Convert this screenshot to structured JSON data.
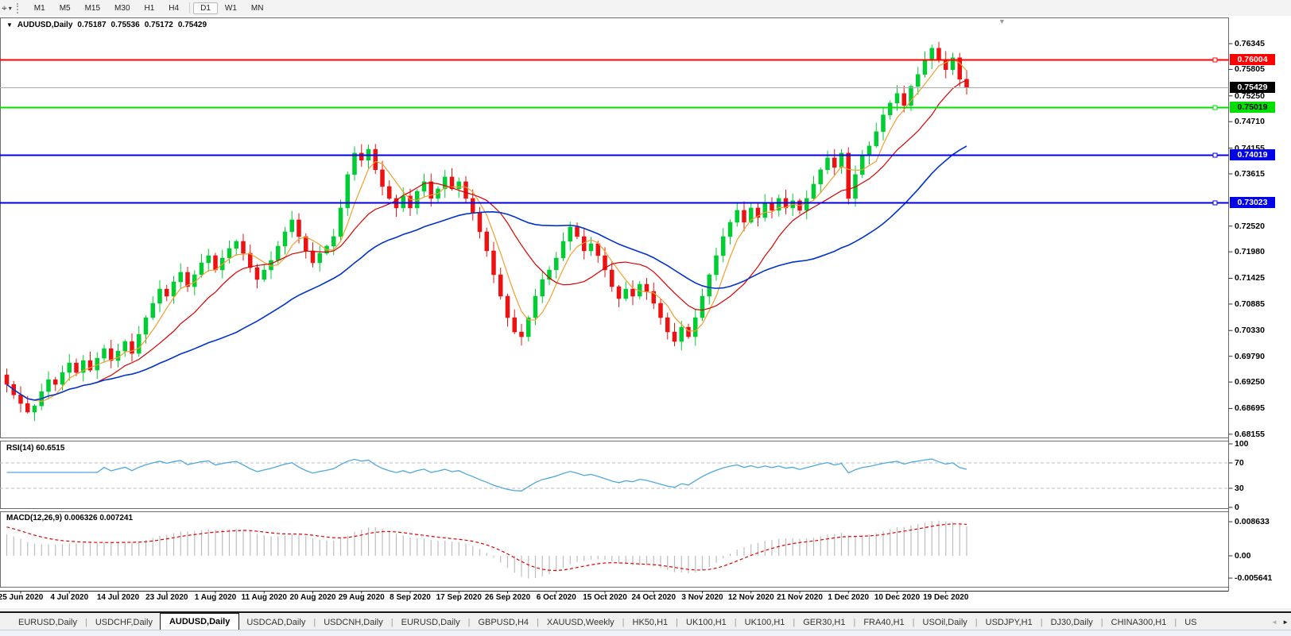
{
  "toolbar": {
    "tools_icon": "chart-cursor",
    "dropdown_icon": "caret-down",
    "timeframes": [
      "M1",
      "M5",
      "M15",
      "M30",
      "H1",
      "H4",
      "D1",
      "W1",
      "MN"
    ],
    "active_timeframe": "D1"
  },
  "chart_header": {
    "dropdown_icon": "triangle-down",
    "symbol": "AUDUSD,Daily",
    "open": "0.75187",
    "high": "0.75536",
    "low": "0.75172",
    "close": "0.75429"
  },
  "price_axis": {
    "ticks": [
      "0.76345",
      "0.75805",
      "0.75250",
      "0.74710",
      "0.74155",
      "0.73615",
      "0.72520",
      "0.71980",
      "0.71425",
      "0.70885",
      "0.70330",
      "0.69790",
      "0.69250",
      "0.68695",
      "0.68155"
    ],
    "badges": [
      {
        "text": "0.76004",
        "value": 0.76004,
        "bg": "#FF0000",
        "fg": "#FFFFFF",
        "name": "resistance-line-badge"
      },
      {
        "text": "0.75429",
        "value": 0.75429,
        "bg": "#000000",
        "fg": "#FFFFFF",
        "name": "current-price-badge"
      },
      {
        "text": "0.75019",
        "value": 0.75019,
        "bg": "#00E000",
        "fg": "#000000",
        "name": "green-level-badge"
      },
      {
        "text": "0.74019",
        "value": 0.74019,
        "bg": "#0000E8",
        "fg": "#FFFFFF",
        "name": "support1-line-badge"
      },
      {
        "text": "0.73023",
        "value": 0.73023,
        "bg": "#0000E8",
        "fg": "#FFFFFF",
        "name": "support2-line-badge"
      }
    ]
  },
  "rsi_pane": {
    "label": "RSI(14)",
    "value": "60.6515",
    "ticks": [
      {
        "text": "100",
        "v": 100
      },
      {
        "text": "70",
        "v": 70
      },
      {
        "text": "30",
        "v": 30
      },
      {
        "text": "0",
        "v": 0
      }
    ],
    "dashed_levels": [
      70,
      30
    ]
  },
  "macd_pane": {
    "label": "MACD(12,26,9)",
    "value_macd": "0.006326",
    "value_signal": "0.007241",
    "ticks": [
      {
        "text": "0.008633",
        "v": 0.008633
      },
      {
        "text": "0.00",
        "v": 0
      },
      {
        "text": "-0.005641",
        "v": -0.005641
      }
    ]
  },
  "date_axis": {
    "labels": [
      "25 Jun 2020",
      "4 Jul 2020",
      "14 Jul 2020",
      "23 Jul 2020",
      "1 Aug 2020",
      "11 Aug 2020",
      "20 Aug 2020",
      "29 Aug 2020",
      "8 Sep 2020",
      "17 Sep 2020",
      "26 Sep 2020",
      "6 Oct 2020",
      "15 Oct 2020",
      "24 Oct 2020",
      "3 Nov 2020",
      "12 Nov 2020",
      "21 Nov 2020",
      "1 Dec 2020",
      "10 Dec 2020",
      "19 Dec 2020"
    ]
  },
  "tabs": {
    "items": [
      "EURUSD,Daily",
      "USDCHF,Daily",
      "AUDUSD,Daily",
      "USDCAD,Daily",
      "USDCNH,Daily",
      "EURUSD,Daily",
      "GBPUSD,H4",
      "XAUUSD,Weekly",
      "HK50,H1",
      "UK100,H1",
      "UK100,H1",
      "GER30,H1",
      "FRA40,H1",
      "USOil,Daily",
      "USDJPY,H1",
      "DJ30,Daily",
      "CHINA300,H1"
    ],
    "active_index": 2,
    "overflow_item": "US",
    "scroll_left_icon": "◄",
    "scroll_right_icon": "►"
  },
  "chart_data": {
    "type": "candlestick",
    "symbol": "AUDUSD",
    "timeframe": "Daily",
    "price_axis_range": [
      0.68155,
      0.76345
    ],
    "first_open": 0.694,
    "closes": [
      0.692,
      0.6898,
      0.688,
      0.6862,
      0.6875,
      0.6905,
      0.693,
      0.692,
      0.6945,
      0.6965,
      0.6945,
      0.697,
      0.695,
      0.6975,
      0.6995,
      0.697,
      0.699,
      0.701,
      0.6985,
      0.7025,
      0.706,
      0.709,
      0.712,
      0.7105,
      0.7135,
      0.7155,
      0.7125,
      0.715,
      0.7175,
      0.719,
      0.716,
      0.7185,
      0.7205,
      0.722,
      0.7195,
      0.7165,
      0.714,
      0.716,
      0.718,
      0.721,
      0.724,
      0.7265,
      0.723,
      0.72,
      0.7175,
      0.7195,
      0.721,
      0.723,
      0.729,
      0.736,
      0.7405,
      0.739,
      0.7413,
      0.737,
      0.7335,
      0.731,
      0.729,
      0.7315,
      0.729,
      0.7325,
      0.7345,
      0.731,
      0.733,
      0.7355,
      0.733,
      0.7345,
      0.731,
      0.728,
      0.724,
      0.72,
      0.715,
      0.7105,
      0.706,
      0.703,
      0.702,
      0.706,
      0.7105,
      0.714,
      0.716,
      0.7185,
      0.722,
      0.725,
      0.723,
      0.72,
      0.7215,
      0.719,
      0.716,
      0.7125,
      0.71,
      0.712,
      0.7105,
      0.713,
      0.7115,
      0.709,
      0.706,
      0.703,
      0.701,
      0.704,
      0.702,
      0.706,
      0.7105,
      0.715,
      0.719,
      0.723,
      0.726,
      0.7285,
      0.726,
      0.729,
      0.727,
      0.73,
      0.7285,
      0.731,
      0.729,
      0.7305,
      0.7285,
      0.731,
      0.734,
      0.737,
      0.7395,
      0.7375,
      0.7405,
      0.731,
      0.736,
      0.74,
      0.742,
      0.745,
      0.7485,
      0.751,
      0.753,
      0.7505,
      0.7545,
      0.757,
      0.76,
      0.7625,
      0.76,
      0.758,
      0.7605,
      0.756,
      0.75429
    ],
    "date_tick_indices": [
      2,
      9,
      16,
      23,
      30,
      37,
      44,
      51,
      58,
      65,
      72,
      79,
      86,
      93,
      100,
      107,
      114,
      121,
      128,
      135
    ],
    "h_lines": [
      {
        "value": 0.76004,
        "color": "#FF0000"
      },
      {
        "value": 0.75019,
        "color": "#00E000"
      },
      {
        "value": 0.74019,
        "color": "#0000E8"
      },
      {
        "value": 0.73023,
        "color": "#0000E8"
      }
    ],
    "current_price": 0.75429,
    "moving_averages": [
      {
        "period": 5,
        "color": "#F0A030"
      },
      {
        "period": 13,
        "color": "#D80000"
      },
      {
        "period": 34,
        "color": "#0033CC"
      }
    ],
    "rsi": {
      "period": 14,
      "last": 60.6515,
      "range": [
        0,
        100
      ],
      "levels": [
        70,
        30
      ]
    },
    "macd": {
      "fast": 12,
      "slow": 26,
      "signal": 9,
      "last_macd": 0.006326,
      "last_signal": 0.007241,
      "range": [
        -0.005641,
        0.008633
      ]
    },
    "colors": {
      "bull": "#00CC33",
      "bear": "#EE1111",
      "rsi_line": "#4FA8DC",
      "macd_hist": "#BDBDBD",
      "macd_signal": "#E00000",
      "current_price_line": "#ABABAB"
    }
  }
}
